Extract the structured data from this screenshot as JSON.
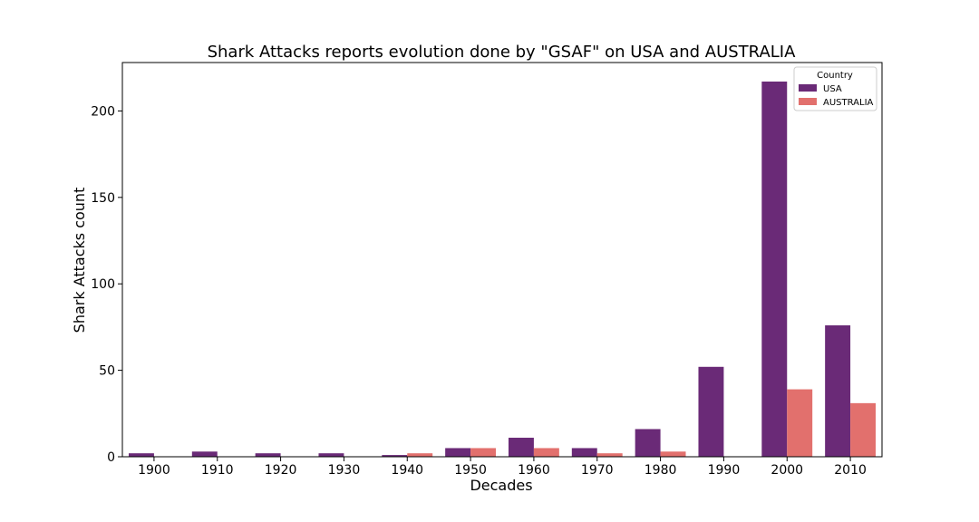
{
  "chart_data": {
    "type": "bar",
    "title": "Shark Attacks reports evolution done by \"GSAF\" on USA and AUSTRALIA",
    "xlabel": "Decades",
    "ylabel": "Shark Attacks count",
    "categories": [
      "1900",
      "1910",
      "1920",
      "1930",
      "1940",
      "1950",
      "1960",
      "1970",
      "1980",
      "1990",
      "2000",
      "2010"
    ],
    "series": [
      {
        "name": "USA",
        "color": "#6a2a77",
        "values": [
          2,
          3,
          2,
          2,
          1,
          5,
          11,
          5,
          16,
          52,
          217,
          76
        ]
      },
      {
        "name": "AUSTRALIA",
        "color": "#e2706d",
        "values": [
          0,
          0,
          0,
          0,
          2,
          5,
          5,
          2,
          3,
          0,
          39,
          31
        ]
      }
    ],
    "ylim": [
      0,
      228
    ],
    "yticks": [
      0,
      50,
      100,
      150,
      200
    ],
    "grid": false,
    "legend": {
      "title": "Country",
      "position": "top-right"
    }
  }
}
